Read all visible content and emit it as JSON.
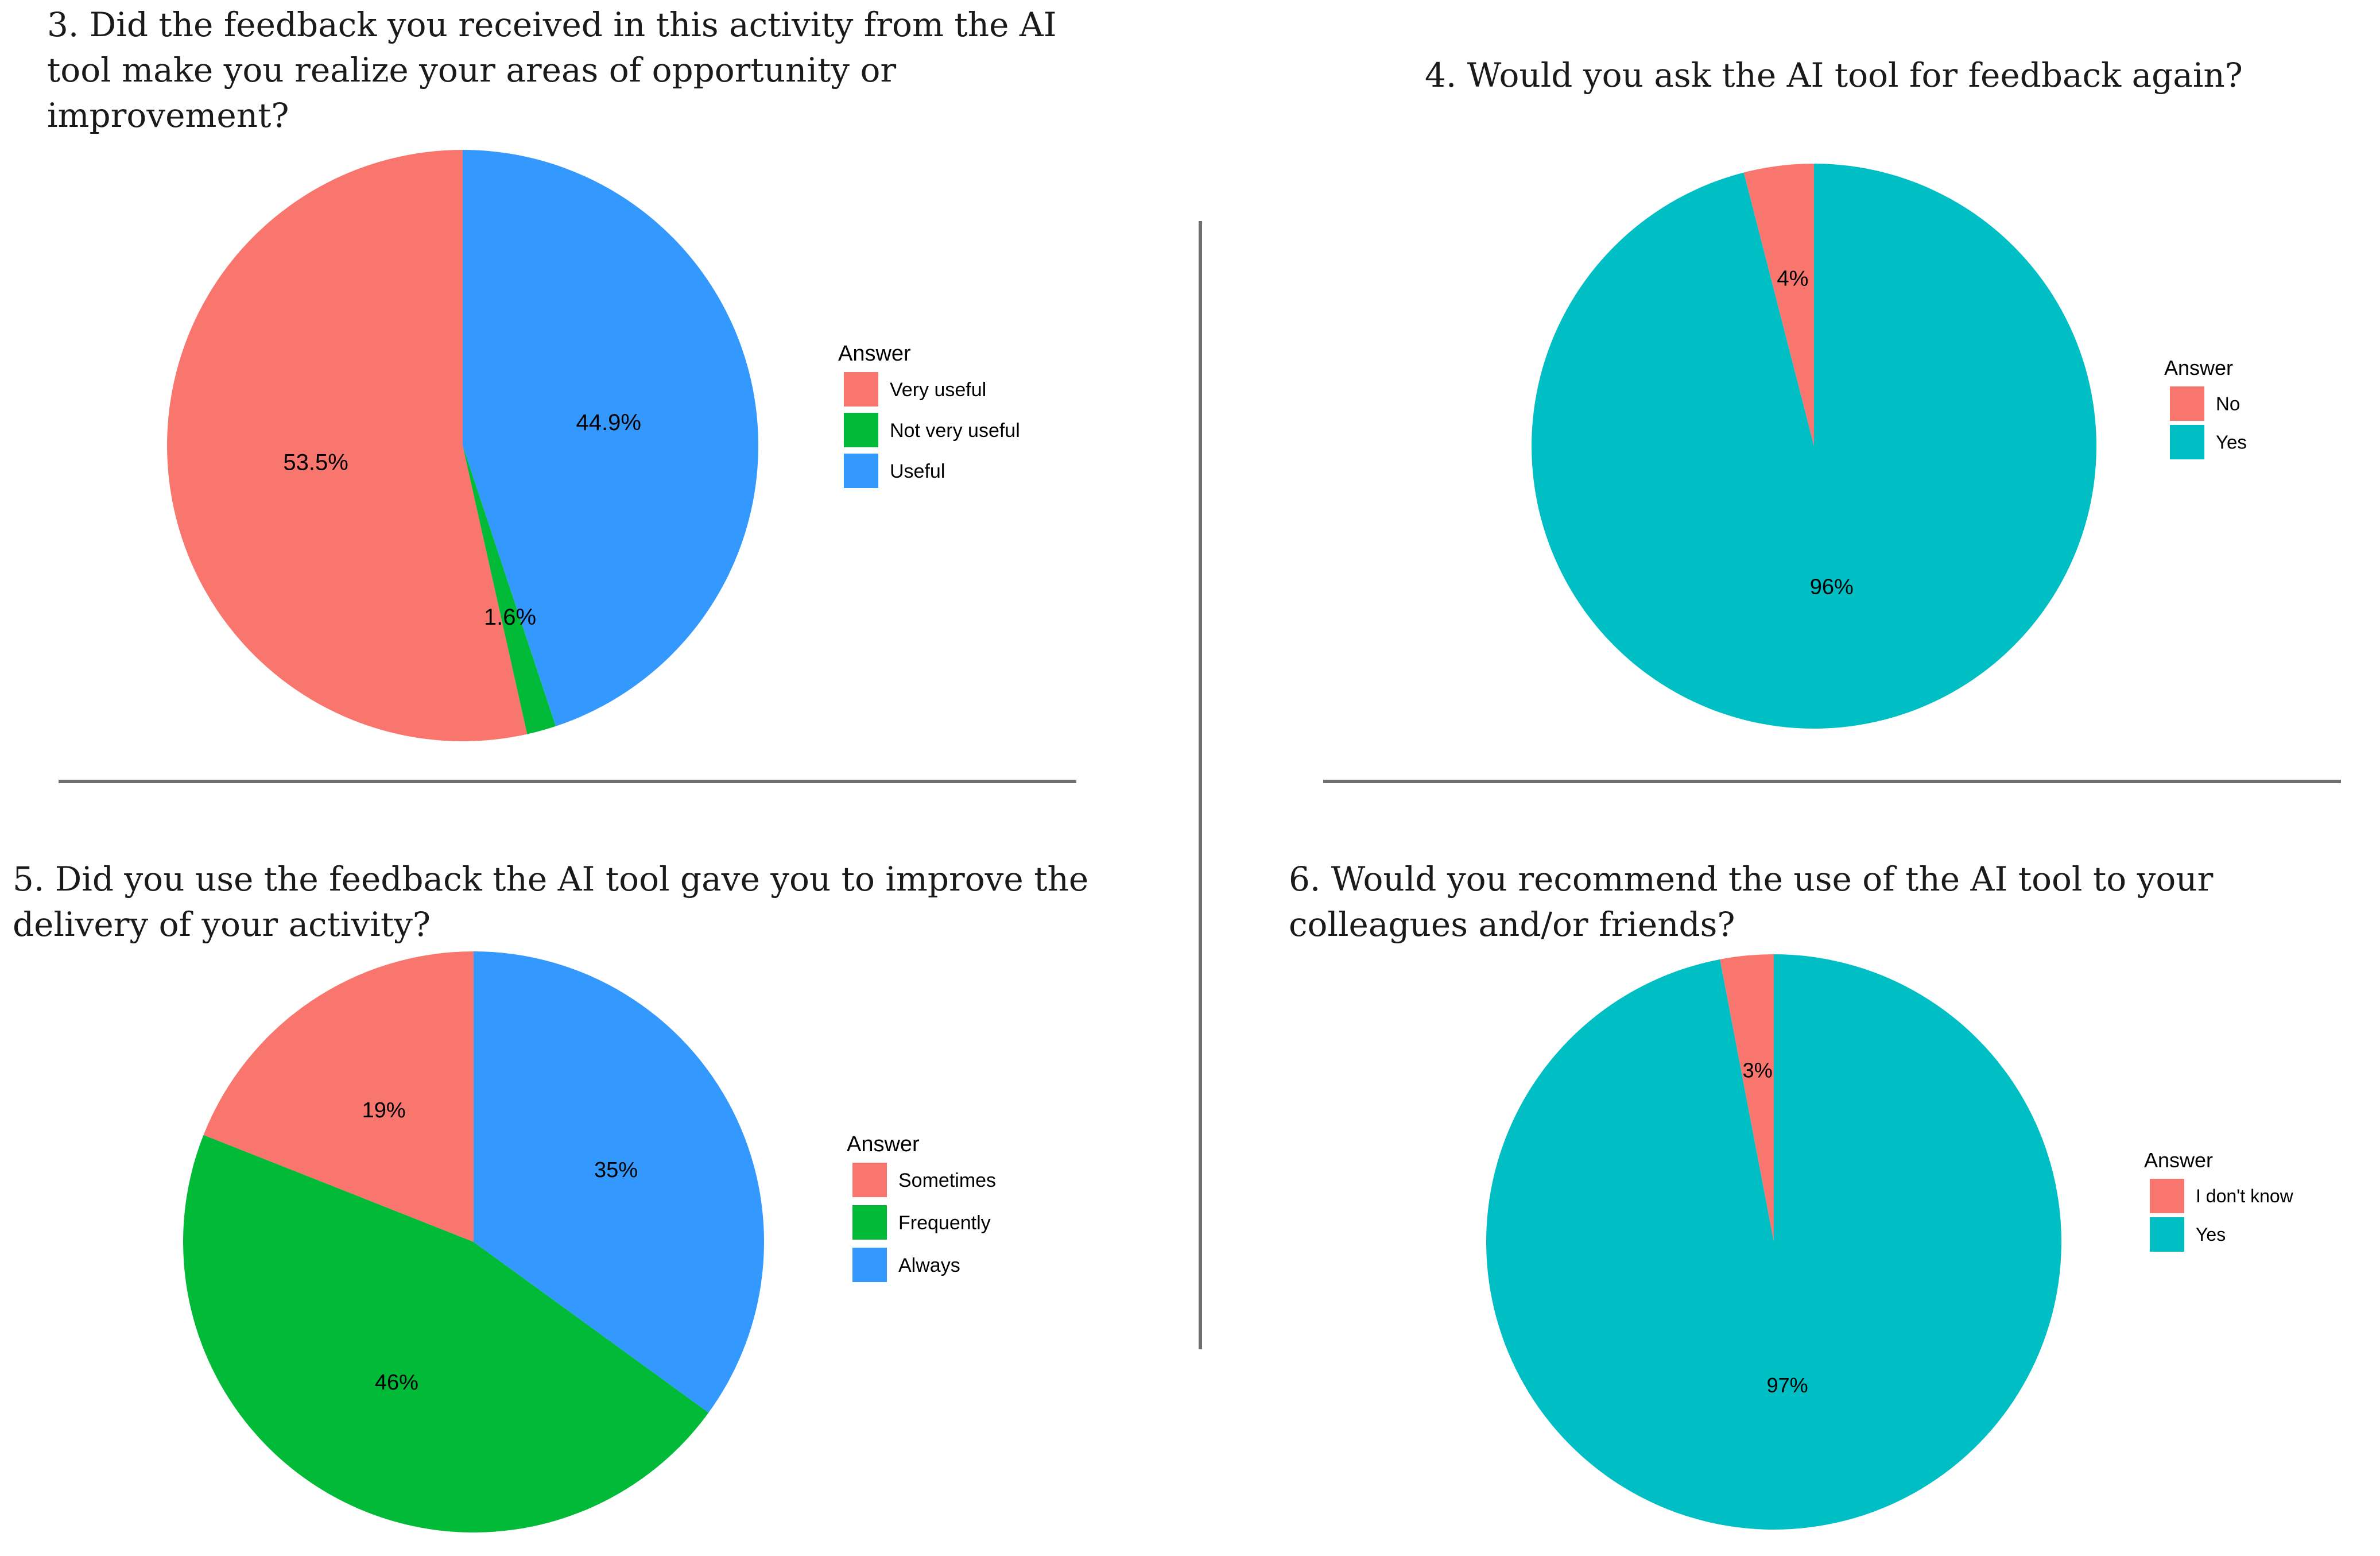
{
  "chart_data": [
    {
      "id": "q3",
      "type": "pie",
      "title": "3. Did the feedback you received in this activity from the AI tool make you realize your areas of opportunity or improvement?",
      "legend_title": "Answer",
      "legend_placement": "right",
      "series": [
        {
          "name": "Very useful",
          "value": 53.5,
          "label": "53.5%",
          "color": "#F8766D"
        },
        {
          "name": "Not very useful",
          "value": 1.6,
          "label": "1.6%",
          "color": "#00BA38"
        },
        {
          "name": "Useful",
          "value": 44.9,
          "label": "44.9%",
          "color": "#3399FF"
        }
      ]
    },
    {
      "id": "q4",
      "type": "pie",
      "title": "4. Would you ask the AI tool for feedback again?",
      "legend_title": "Answer",
      "legend_placement": "right",
      "series": [
        {
          "name": "No",
          "value": 4,
          "label": "4%",
          "color": "#F8766D"
        },
        {
          "name": "Yes",
          "value": 96,
          "label": "96%",
          "color": "#00BFC4"
        }
      ]
    },
    {
      "id": "q5",
      "type": "pie",
      "title": "5. Did you use the feedback the AI tool gave you to improve the delivery of your activity?",
      "legend_title": "Answer",
      "legend_placement": "right",
      "series": [
        {
          "name": "Sometimes",
          "value": 19,
          "label": "19%",
          "color": "#F8766D"
        },
        {
          "name": "Frequently",
          "value": 46,
          "label": "46%",
          "color": "#00BA38"
        },
        {
          "name": "Always",
          "value": 35,
          "label": "35%",
          "color": "#3399FF"
        }
      ]
    },
    {
      "id": "q6",
      "type": "pie",
      "title": "6. Would you recommend the use of the AI tool to your colleagues and/or friends?",
      "legend_title": "Answer",
      "legend_placement": "right",
      "series": [
        {
          "name": "I don't know",
          "value": 3,
          "label": "3%",
          "color": "#F8766D"
        },
        {
          "name": "Yes",
          "value": 97,
          "label": "97%",
          "color": "#00BFC4"
        }
      ]
    }
  ]
}
